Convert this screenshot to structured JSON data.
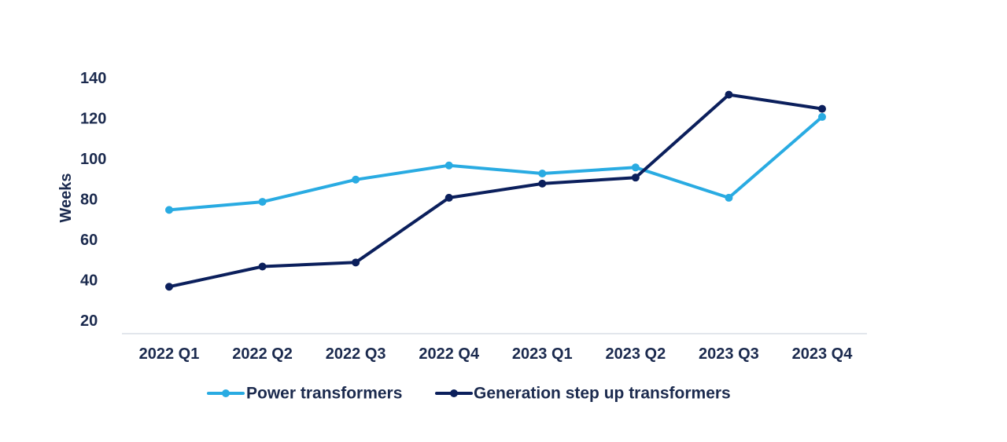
{
  "chart_data": {
    "type": "line",
    "title": "",
    "xlabel": "",
    "ylabel": "Weeks",
    "categories": [
      "2022 Q1",
      "2022 Q2",
      "2022 Q3",
      "2022 Q4",
      "2023 Q1",
      "2023 Q2",
      "2023 Q3",
      "2023 Q4"
    ],
    "y_ticks": [
      20,
      40,
      60,
      80,
      100,
      120,
      140
    ],
    "ylim": [
      20,
      140
    ],
    "grid": false,
    "legend_position": "bottom",
    "series": [
      {
        "name": "Power transformers",
        "color": "#29abe2",
        "values": [
          75,
          79,
          90,
          97,
          93,
          96,
          81,
          121
        ]
      },
      {
        "name": "Generation step up transformers",
        "color": "#0b1f5c",
        "values": [
          37,
          47,
          49,
          81,
          88,
          91,
          132,
          125
        ]
      }
    ]
  }
}
